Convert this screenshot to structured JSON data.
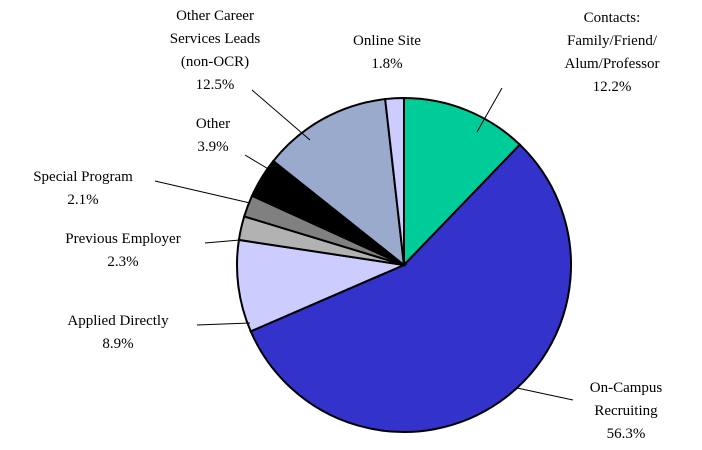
{
  "chart_data": {
    "type": "pie",
    "categories": [
      "Contacts:\nFamily/Friend/\nAlum/Professor",
      "On-Campus\nRecruiting",
      "Applied Directly",
      "Previous Employer",
      "Special Program",
      "Other",
      "Other Career\nServices Leads\n(non-OCR)",
      "Online Site"
    ],
    "values": [
      12.2,
      56.3,
      8.9,
      2.3,
      2.1,
      3.9,
      12.5,
      1.8
    ],
    "value_labels": [
      "12.2%",
      "56.3%",
      "8.9%",
      "2.3%",
      "2.1%",
      "3.9%",
      "12.5%",
      "1.8%"
    ],
    "colors": [
      "#00cc99",
      "#3333cc",
      "#ccccff",
      "#b2b2b2",
      "#808080",
      "#000000",
      "#99aacc",
      "#ccccff"
    ]
  }
}
